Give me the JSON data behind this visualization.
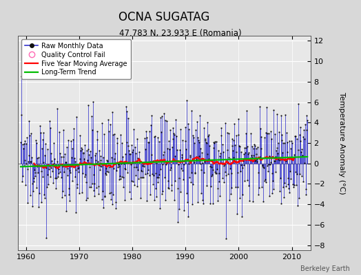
{
  "title": "OCNA SUGATAG",
  "subtitle": "47.783 N, 23.933 E (Romania)",
  "ylabel": "Temperature Anomaly (°C)",
  "watermark": "Berkeley Earth",
  "xlim": [
    1958.5,
    2013.5
  ],
  "ylim": [
    -8.5,
    12.5
  ],
  "yticks": [
    -8,
    -6,
    -4,
    -2,
    0,
    2,
    4,
    6,
    8,
    10,
    12
  ],
  "xticks": [
    1960,
    1970,
    1980,
    1990,
    2000,
    2010
  ],
  "bg_color": "#d8d8d8",
  "plot_bg_color": "#e8e8e8",
  "raw_line_color": "#3333cc",
  "raw_marker_color": "#111111",
  "moving_avg_color": "#ff0000",
  "trend_color": "#00bb00",
  "seed": 137,
  "start_year": 1959,
  "end_year": 2012,
  "trend_slope": 0.018,
  "trend_intercept_at_1985": 0.15,
  "noise_std": 2.2
}
